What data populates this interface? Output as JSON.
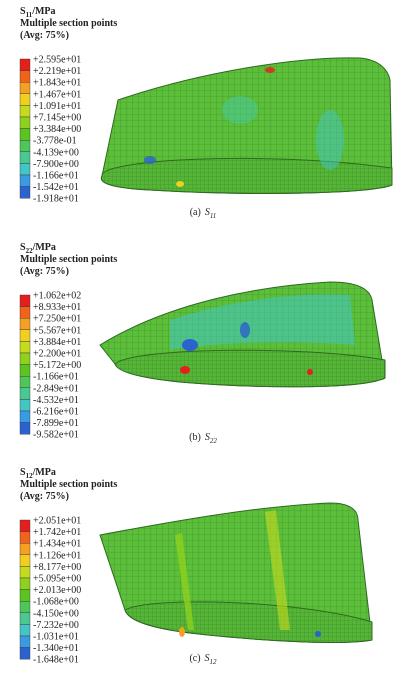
{
  "panels": [
    {
      "symbol": "S",
      "index": "11",
      "unit": "/MPa",
      "subtitle": "Multiple section points",
      "average": "(Avg: 75%)",
      "legend": [
        "+2.595e+01",
        "+2.219e+01",
        "+1.843e+01",
        "+1.467e+01",
        "+1.091e+01",
        "+7.145e+00",
        "+3.384e+00",
        "-3.778e-01",
        "-4.139e+00",
        "-7.900e+00",
        "-1.166e+01",
        "-1.542e+01",
        "-1.918e+01"
      ],
      "caption_label": "(a)",
      "caption_symbol": "S",
      "caption_index": "11"
    },
    {
      "symbol": "S",
      "index": "22",
      "unit": "/MPa",
      "subtitle": "Multiple section points",
      "average": "(Avg: 75%)",
      "legend": [
        "+1.062e+02",
        "+8.933e+01",
        "+7.250e+01",
        "+5.567e+01",
        "+3.884e+01",
        "+2.200e+01",
        "+5.172e+00",
        "-1.166e+01",
        "-2.849e+01",
        "-4.532e+01",
        "-6.216e+01",
        "-7.899e+01",
        "-9.582e+01"
      ],
      "caption_label": "(b)",
      "caption_symbol": "S",
      "caption_index": "22"
    },
    {
      "symbol": "S",
      "index": "12",
      "unit": "/MPa",
      "subtitle": "Multiple section points",
      "average": "(Avg: 75%)",
      "legend": [
        "+2.051e+01",
        "+1.742e+01",
        "+1.434e+01",
        "+1.126e+01",
        "+8.177e+00",
        "+5.095e+00",
        "+2.013e+00",
        "-1.068e+00",
        "-4.150e+00",
        "-7.232e+00",
        "-1.031e+01",
        "-1.340e+01",
        "-1.648e+01"
      ],
      "caption_label": "(c)",
      "caption_symbol": "S",
      "caption_index": "12"
    }
  ],
  "colormap": [
    "#e3201c",
    "#f2621c",
    "#f5a022",
    "#efd01e",
    "#c6db1e",
    "#8ed11e",
    "#5cc41e",
    "#4fc65a",
    "#49c892",
    "#44c6c6",
    "#3a9ae4",
    "#2a62cf"
  ]
}
